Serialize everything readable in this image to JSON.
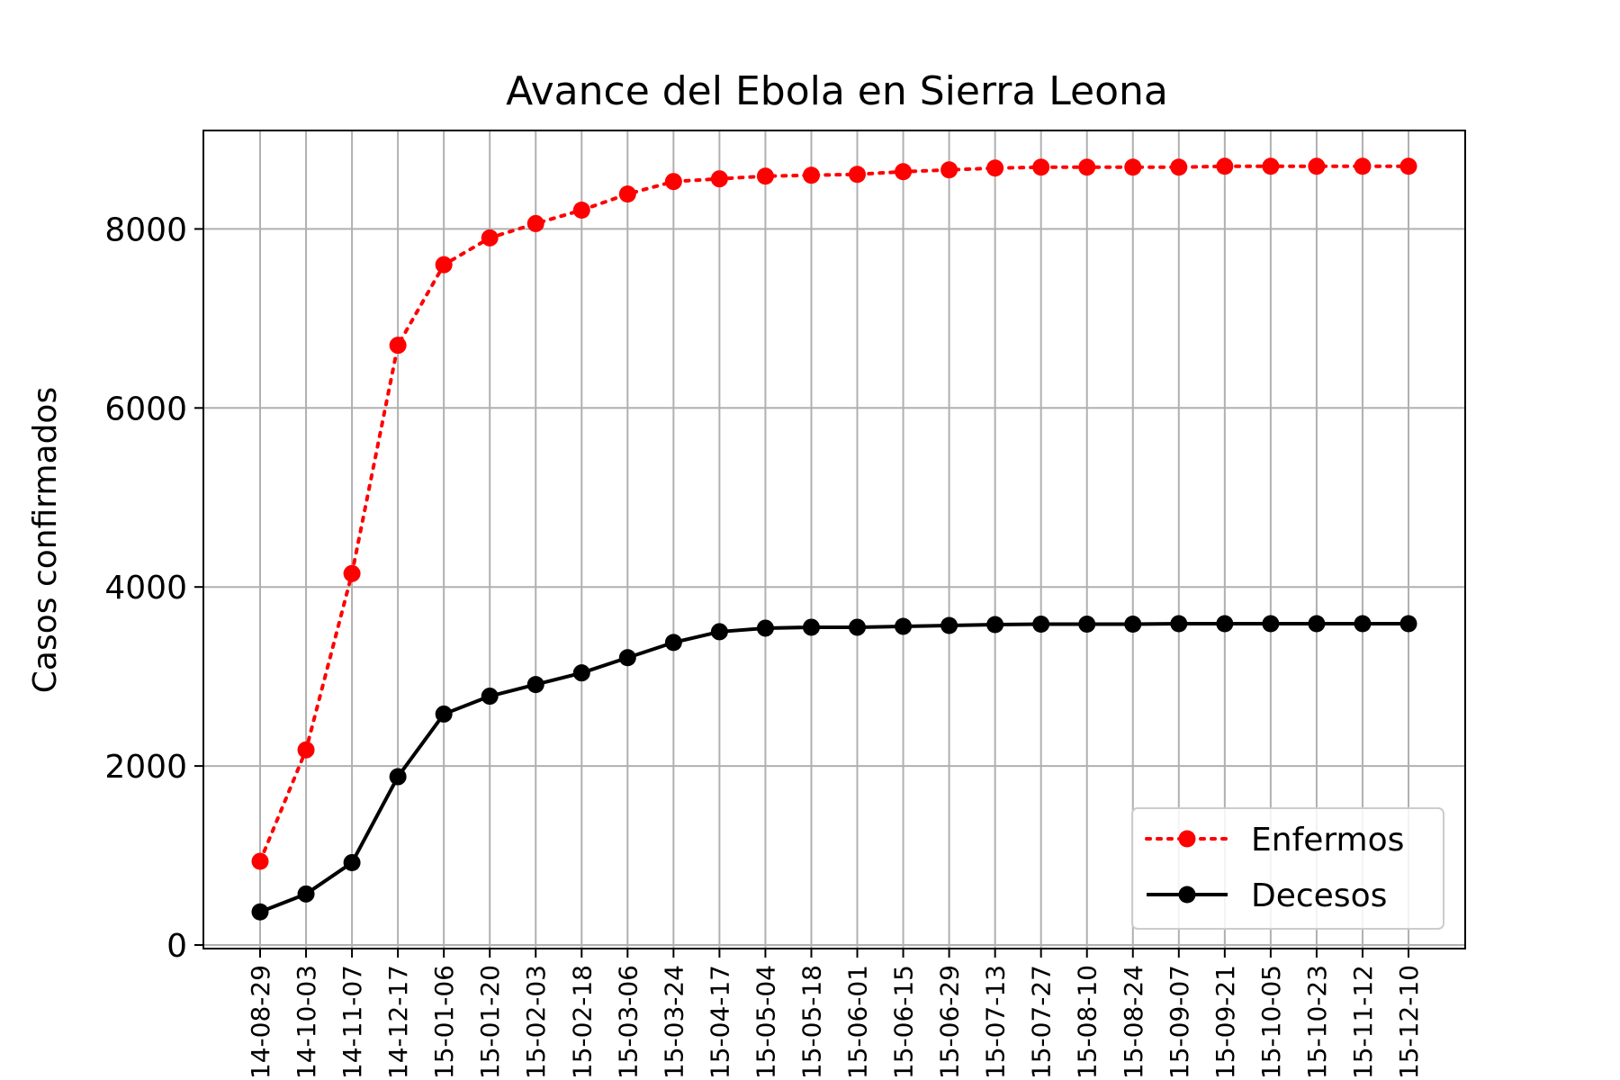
{
  "chart_data": {
    "type": "line",
    "title": "Avance del Ebola en Sierra Leona",
    "xlabel": "",
    "ylabel": "Casos confirmados",
    "grid": true,
    "legend_position": "bottom-right",
    "ylim": [
      -40,
      9100
    ],
    "yticks": [
      0,
      2000,
      4000,
      6000,
      8000
    ],
    "x": [
      "2014-08-29",
      "2014-10-03",
      "2014-11-07",
      "2014-12-17",
      "2015-01-06",
      "2015-01-20",
      "2015-02-03",
      "2015-02-18",
      "2015-03-06",
      "2015-03-24",
      "2015-04-17",
      "2015-05-04",
      "2015-05-18",
      "2015-06-01",
      "2015-06-15",
      "2015-06-29",
      "2015-07-13",
      "2015-07-27",
      "2015-08-10",
      "2015-08-24",
      "2015-09-07",
      "2015-09-21",
      "2015-10-05",
      "2015-10-23",
      "2015-11-12",
      "2015-12-10"
    ],
    "series": [
      {
        "name": "Enfermos",
        "color": "#ff0000",
        "line_style": "dotted",
        "values": [
          935,
          2180,
          4150,
          6700,
          7600,
          7900,
          8060,
          8210,
          8390,
          8530,
          8560,
          8590,
          8600,
          8610,
          8640,
          8660,
          8680,
          8690,
          8690,
          8690,
          8690,
          8700,
          8700,
          8700,
          8700,
          8700
        ]
      },
      {
        "name": "Decesos",
        "color": "#000000",
        "line_style": "solid",
        "values": [
          370,
          570,
          920,
          1880,
          2580,
          2780,
          2910,
          3040,
          3210,
          3380,
          3500,
          3540,
          3550,
          3550,
          3560,
          3570,
          3580,
          3585,
          3585,
          3585,
          3590,
          3590,
          3590,
          3590,
          3590,
          3590
        ]
      }
    ]
  }
}
